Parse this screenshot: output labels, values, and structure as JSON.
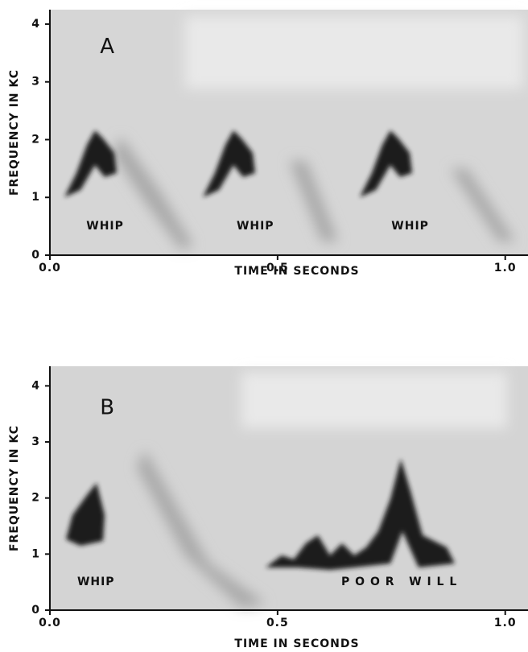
{
  "chart_data": [
    {
      "type": "spectrogram",
      "xlabel": "TIME IN SECONDS",
      "ylabel": "FREQUENCY IN KC",
      "xlim": [
        0,
        1.05
      ],
      "ylim": [
        0,
        4.25
      ],
      "xticks": [
        {
          "value": 0,
          "label": "0.0"
        },
        {
          "value": 0.5,
          "label": "0.5"
        },
        {
          "value": 1,
          "label": "1.0"
        }
      ],
      "yticks": [
        0,
        1,
        2,
        3,
        4
      ],
      "annotations": [
        {
          "text": "A",
          "x": 0.11,
          "y": 3.6
        },
        {
          "text": "WHIP",
          "x": 0.08,
          "y": 0.5
        },
        {
          "text": "WHIP",
          "x": 0.41,
          "y": 0.5
        },
        {
          "text": "WHIP",
          "x": 0.75,
          "y": 0.5
        }
      ]
    },
    {
      "type": "spectrogram",
      "xlabel": "TIME IN SECONDS",
      "ylabel": "FREQUENCY IN KC",
      "xlim": [
        0,
        1.05
      ],
      "ylim": [
        0,
        4.35
      ],
      "xticks": [
        {
          "value": 0,
          "label": "0.0"
        },
        {
          "value": 0.5,
          "label": "0.5"
        },
        {
          "value": 1,
          "label": "1.0"
        }
      ],
      "yticks": [
        0,
        1,
        2,
        3,
        4
      ],
      "annotations": [
        {
          "text": "B",
          "x": 0.11,
          "y": 3.6
        },
        {
          "text": "WHIP",
          "x": 0.06,
          "y": 0.5
        },
        {
          "text": "P O O R   W I L L",
          "x": 0.64,
          "y": 0.5
        }
      ]
    }
  ]
}
